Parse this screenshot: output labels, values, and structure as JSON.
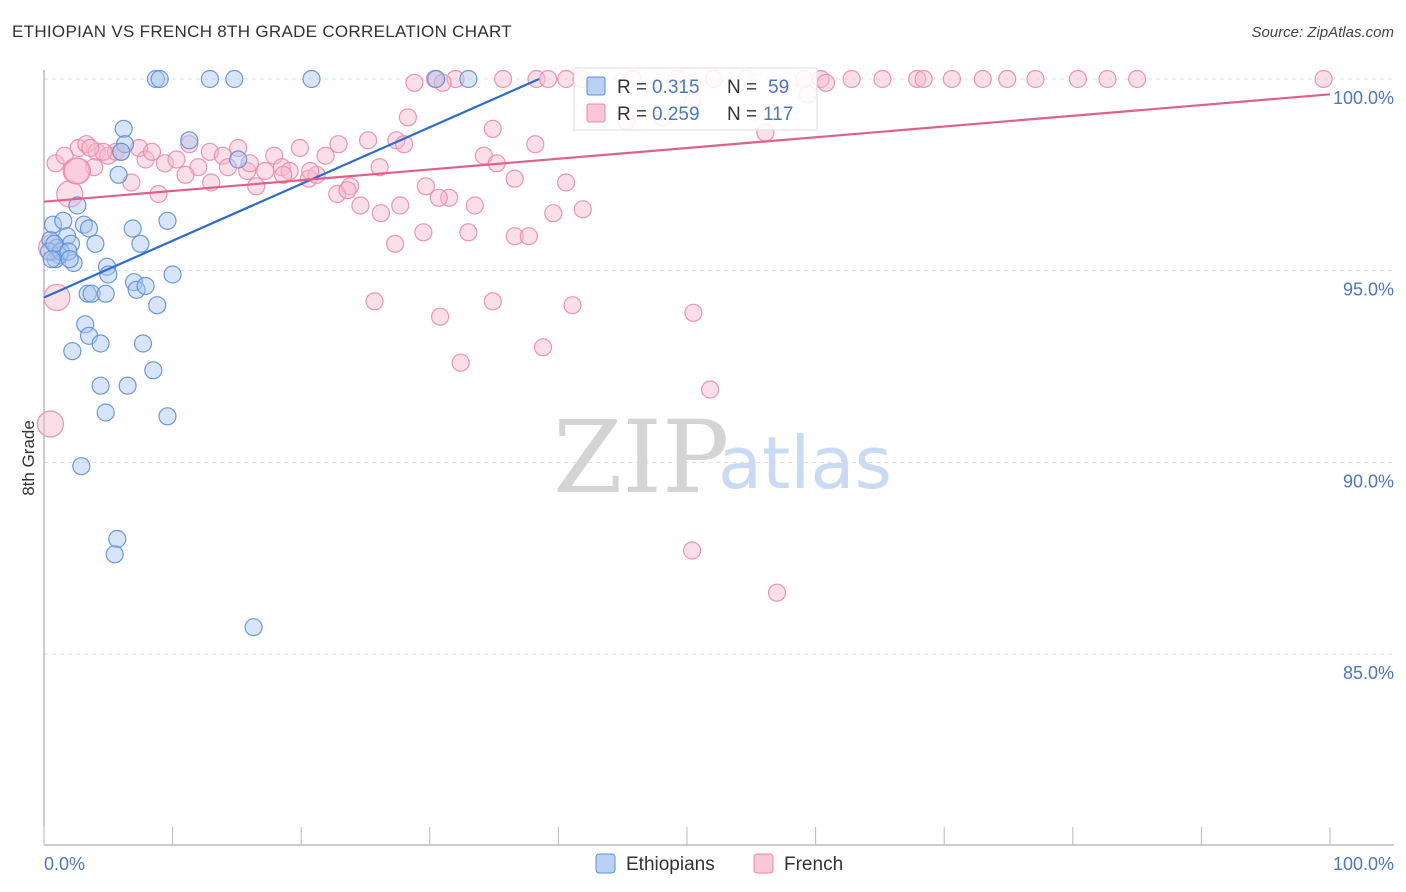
{
  "title": "ETHIOPIAN VS FRENCH 8TH GRADE CORRELATION CHART",
  "source": "Source: ZipAtlas.com",
  "watermark": {
    "zip": "ZIP",
    "atlas": "atlas"
  },
  "colors": {
    "blue_fill": "#a8c6f0",
    "blue_stroke": "#5b8fd6",
    "blue_line": "#2a6ccf",
    "pink_fill": "#f6b8cc",
    "pink_stroke": "#e98aa8",
    "pink_line": "#e0608c",
    "value_text": "#4a78c2",
    "grid": "#dddddd"
  },
  "legend": {
    "r_label": "R =",
    "n_label": "N =",
    "rows": [
      {
        "r": "0.315",
        "n": "59"
      },
      {
        "r": "0.259",
        "n": "117"
      }
    ]
  },
  "chart_data": {
    "type": "scatter",
    "title": "ETHIOPIAN VS FRENCH 8TH GRADE CORRELATION CHART",
    "xlabel": "",
    "ylabel": "8th Grade",
    "xlim": [
      0,
      100
    ],
    "ylim": [
      80.0,
      101.0
    ],
    "x_tick_labels": [
      "0.0%",
      "100.0%"
    ],
    "y_ticks": [
      {
        "value": 100,
        "label": "100.0%"
      },
      {
        "value": 95,
        "label": "95.0%"
      },
      {
        "value": 90,
        "label": "90.0%"
      },
      {
        "value": 85,
        "label": "85.0%"
      }
    ],
    "grid": true,
    "legend_position": "top-center",
    "series": [
      {
        "name": "Ethiopians",
        "color": "#5b8fd6",
        "r": 0.315,
        "n": 59,
        "trend": [
          [
            0,
            94.3
          ],
          [
            38.5,
            100.0
          ]
        ],
        "points": [
          [
            8.7,
            100
          ],
          [
            9.0,
            100
          ],
          [
            12.9,
            100
          ],
          [
            14.8,
            100
          ],
          [
            20.8,
            100
          ],
          [
            30.5,
            100
          ],
          [
            33.0,
            100
          ],
          [
            6.2,
            98.7
          ],
          [
            6.3,
            98.3
          ],
          [
            6.0,
            98.1
          ],
          [
            11.3,
            98.4
          ],
          [
            15.1,
            97.9
          ],
          [
            5.8,
            97.5
          ],
          [
            0.5,
            95.8
          ],
          [
            0.7,
            96.2
          ],
          [
            1.0,
            95.6
          ],
          [
            1.5,
            96.3
          ],
          [
            1.2,
            95.4
          ],
          [
            1.8,
            95.9
          ],
          [
            2.1,
            95.7
          ],
          [
            2.3,
            95.2
          ],
          [
            2.6,
            96.7
          ],
          [
            3.1,
            96.2
          ],
          [
            3.5,
            96.1
          ],
          [
            4.0,
            95.7
          ],
          [
            0.9,
            95.3
          ],
          [
            0.4,
            95.5
          ],
          [
            6.9,
            96.1
          ],
          [
            7.5,
            95.7
          ],
          [
            9.6,
            96.3
          ],
          [
            4.9,
            95.1
          ],
          [
            5.0,
            94.9
          ],
          [
            7.0,
            94.7
          ],
          [
            7.2,
            94.5
          ],
          [
            7.9,
            94.6
          ],
          [
            10.0,
            94.9
          ],
          [
            3.4,
            94.4
          ],
          [
            3.7,
            94.4
          ],
          [
            4.8,
            94.4
          ],
          [
            8.8,
            94.1
          ],
          [
            3.2,
            93.6
          ],
          [
            3.5,
            93.3
          ],
          [
            2.2,
            92.9
          ],
          [
            4.4,
            93.1
          ],
          [
            7.7,
            93.1
          ],
          [
            8.5,
            92.4
          ],
          [
            4.4,
            92.0
          ],
          [
            6.5,
            92.0
          ],
          [
            4.8,
            91.3
          ],
          [
            9.6,
            91.2
          ],
          [
            2.9,
            89.9
          ],
          [
            5.7,
            88.0
          ],
          [
            5.5,
            87.6
          ],
          [
            16.3,
            85.7
          ],
          [
            1.3,
            95.5
          ],
          [
            0.8,
            95.7
          ],
          [
            1.9,
            95.5
          ],
          [
            2.0,
            95.3
          ],
          [
            0.6,
            95.3
          ]
        ]
      },
      {
        "name": "French",
        "color": "#e98aa8",
        "r": 0.259,
        "n": 117,
        "trend": [
          [
            0,
            96.8
          ],
          [
            100,
            99.6
          ]
        ],
        "points": [
          [
            30.4,
            100
          ],
          [
            32.0,
            100
          ],
          [
            35.7,
            100
          ],
          [
            38.3,
            100
          ],
          [
            39.2,
            100
          ],
          [
            40.6,
            100
          ],
          [
            41.8,
            100
          ],
          [
            45.8,
            100
          ],
          [
            49.2,
            100
          ],
          [
            52.1,
            100
          ],
          [
            54.6,
            100
          ],
          [
            59.1,
            100
          ],
          [
            60.4,
            100
          ],
          [
            62.8,
            100
          ],
          [
            65.2,
            100
          ],
          [
            67.9,
            100
          ],
          [
            68.4,
            100
          ],
          [
            70.6,
            100
          ],
          [
            73.0,
            100
          ],
          [
            74.9,
            100
          ],
          [
            77.1,
            100
          ],
          [
            80.4,
            100
          ],
          [
            82.7,
            100
          ],
          [
            85.0,
            100
          ],
          [
            99.5,
            100
          ],
          [
            28.8,
            99.9
          ],
          [
            31.0,
            99.9
          ],
          [
            50.4,
            99.9
          ],
          [
            60.8,
            99.9
          ],
          [
            57.3,
            99.8
          ],
          [
            59.4,
            99.6
          ],
          [
            50.4,
            99.4
          ],
          [
            48.1,
            99.0
          ],
          [
            45.3,
            98.9
          ],
          [
            28.3,
            99.0
          ],
          [
            34.9,
            98.7
          ],
          [
            56.1,
            98.6
          ],
          [
            2.7,
            98.2
          ],
          [
            3.3,
            98.3
          ],
          [
            4.1,
            98.1
          ],
          [
            5.0,
            98.0
          ],
          [
            5.6,
            98.1
          ],
          [
            7.4,
            98.2
          ],
          [
            7.9,
            97.9
          ],
          [
            8.4,
            98.1
          ],
          [
            9.4,
            97.8
          ],
          [
            10.3,
            97.9
          ],
          [
            11.3,
            98.3
          ],
          [
            12.0,
            97.7
          ],
          [
            12.9,
            98.1
          ],
          [
            13.9,
            98.0
          ],
          [
            14.3,
            97.7
          ],
          [
            15.1,
            98.2
          ],
          [
            15.8,
            97.6
          ],
          [
            16.5,
            97.2
          ],
          [
            17.2,
            97.6
          ],
          [
            17.9,
            98.0
          ],
          [
            18.5,
            97.7
          ],
          [
            19.1,
            97.6
          ],
          [
            19.9,
            98.2
          ],
          [
            20.6,
            97.4
          ],
          [
            21.2,
            97.5
          ],
          [
            21.9,
            98.0
          ],
          [
            22.9,
            98.3
          ],
          [
            23.8,
            97.2
          ],
          [
            24.6,
            96.7
          ],
          [
            25.2,
            98.4
          ],
          [
            26.1,
            97.7
          ],
          [
            27.4,
            98.4
          ],
          [
            28.0,
            98.3
          ],
          [
            29.7,
            97.2
          ],
          [
            31.5,
            96.9
          ],
          [
            33.5,
            96.7
          ],
          [
            34.2,
            98.0
          ],
          [
            35.2,
            97.8
          ],
          [
            36.6,
            97.4
          ],
          [
            38.2,
            98.3
          ],
          [
            22.8,
            97.0
          ],
          [
            3.9,
            97.7
          ],
          [
            4.6,
            98.1
          ],
          [
            0.9,
            97.8
          ],
          [
            1.6,
            98.0
          ],
          [
            2.5,
            97.6
          ],
          [
            6.8,
            97.3
          ],
          [
            8.9,
            97.0
          ],
          [
            11.0,
            97.5
          ],
          [
            13.0,
            97.3
          ],
          [
            16.0,
            97.8
          ],
          [
            18.6,
            97.5
          ],
          [
            20.7,
            97.6
          ],
          [
            23.6,
            97.1
          ],
          [
            26.2,
            96.5
          ],
          [
            27.7,
            96.7
          ],
          [
            29.5,
            96.0
          ],
          [
            33.0,
            96.0
          ],
          [
            36.6,
            95.9
          ],
          [
            37.7,
            95.9
          ],
          [
            39.6,
            96.5
          ],
          [
            41.9,
            96.6
          ],
          [
            27.3,
            95.7
          ],
          [
            30.7,
            96.9
          ],
          [
            40.6,
            97.3
          ],
          [
            25.7,
            94.2
          ],
          [
            34.9,
            94.2
          ],
          [
            41.1,
            94.1
          ],
          [
            30.8,
            93.8
          ],
          [
            50.5,
            93.9
          ],
          [
            38.8,
            93.0
          ],
          [
            32.4,
            92.6
          ],
          [
            51.8,
            91.9
          ],
          [
            0.5,
            91.0
          ],
          [
            50.4,
            87.7
          ],
          [
            57.0,
            86.6
          ],
          [
            2.0,
            97.0
          ],
          [
            2.6,
            97.6
          ],
          [
            1.0,
            94.3
          ],
          [
            0.6,
            95.6
          ],
          [
            3.6,
            98.2
          ],
          [
            6.0,
            98.1
          ]
        ]
      }
    ]
  },
  "bottom_legend": [
    {
      "label": "Ethiopians"
    },
    {
      "label": "French"
    }
  ]
}
